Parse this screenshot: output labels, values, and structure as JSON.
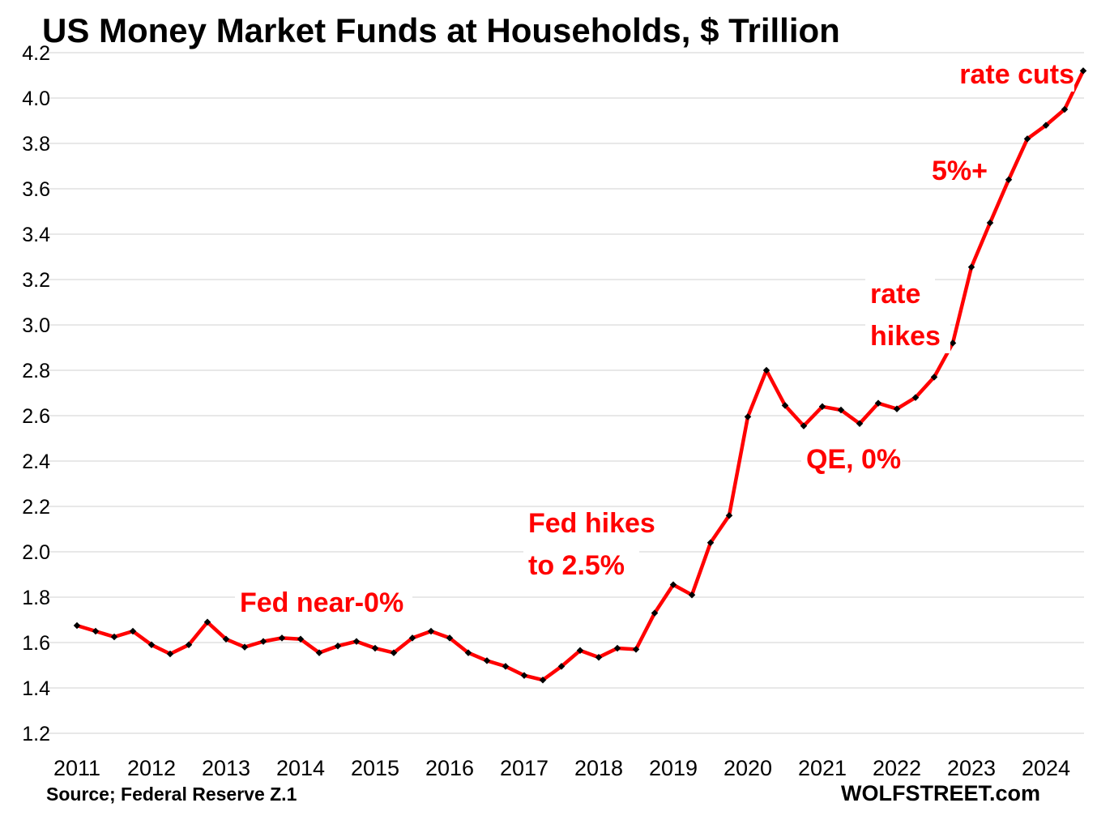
{
  "chart_data": {
    "type": "line",
    "title": "US Money Market Funds at Households, $ Trillion",
    "xlabel": "",
    "ylabel": "",
    "ylim": [
      1.2,
      4.2
    ],
    "yticks": [
      "1.2",
      "1.4",
      "1.6",
      "1.8",
      "2.0",
      "2.2",
      "2.4",
      "2.6",
      "2.8",
      "3.0",
      "3.2",
      "3.4",
      "3.6",
      "3.8",
      "4.0",
      "4.2"
    ],
    "xticks": [
      "2011",
      "2012",
      "2013",
      "2014",
      "2015",
      "2016",
      "2017",
      "2018",
      "2019",
      "2020",
      "2021",
      "2022",
      "2023",
      "2024"
    ],
    "grid": "horizontal",
    "series_color": "#ff0000",
    "marker_color": "#000000",
    "x": [
      "2011Q1",
      "2011Q2",
      "2011Q3",
      "2011Q4",
      "2012Q1",
      "2012Q2",
      "2012Q3",
      "2012Q4",
      "2013Q1",
      "2013Q2",
      "2013Q3",
      "2013Q4",
      "2014Q1",
      "2014Q2",
      "2014Q3",
      "2014Q4",
      "2015Q1",
      "2015Q2",
      "2015Q3",
      "2015Q4",
      "2016Q1",
      "2016Q2",
      "2016Q3",
      "2016Q4",
      "2017Q1",
      "2017Q2",
      "2017Q3",
      "2017Q4",
      "2018Q1",
      "2018Q2",
      "2018Q3",
      "2018Q4",
      "2019Q1",
      "2019Q2",
      "2019Q3",
      "2019Q4",
      "2020Q1",
      "2020Q2",
      "2020Q3",
      "2020Q4",
      "2021Q1",
      "2021Q2",
      "2021Q3",
      "2021Q4",
      "2022Q1",
      "2022Q2",
      "2022Q3",
      "2022Q4",
      "2023Q1",
      "2023Q2",
      "2023Q3",
      "2023Q4",
      "2024Q1",
      "2024Q2",
      "2024Q3"
    ],
    "values": [
      1.675,
      1.65,
      1.625,
      1.65,
      1.59,
      1.55,
      1.59,
      1.69,
      1.615,
      1.58,
      1.605,
      1.62,
      1.615,
      1.555,
      1.585,
      1.605,
      1.575,
      1.555,
      1.62,
      1.65,
      1.62,
      1.555,
      1.52,
      1.495,
      1.455,
      1.435,
      1.495,
      1.565,
      1.535,
      1.575,
      1.57,
      1.73,
      1.855,
      1.81,
      2.04,
      2.16,
      2.595,
      2.8,
      2.645,
      2.555,
      2.64,
      2.625,
      2.565,
      2.655,
      2.63,
      2.68,
      2.77,
      2.92,
      3.255,
      3.45,
      3.64,
      3.82,
      3.88,
      3.95,
      4.12
    ],
    "annotations": [
      {
        "lines": [
          "Fed near-0%"
        ]
      },
      {
        "lines": [
          "Fed hikes",
          "to 2.5%"
        ]
      },
      {
        "lines": [
          "QE, 0%"
        ]
      },
      {
        "lines": [
          "rate",
          "hikes"
        ]
      },
      {
        "lines": [
          "5%+"
        ]
      },
      {
        "lines": [
          "rate cuts"
        ]
      }
    ],
    "annotation_color": "#ff0000",
    "source": "Source; Federal Reserve Z.1",
    "brand": "WOLFSTREET.com"
  }
}
